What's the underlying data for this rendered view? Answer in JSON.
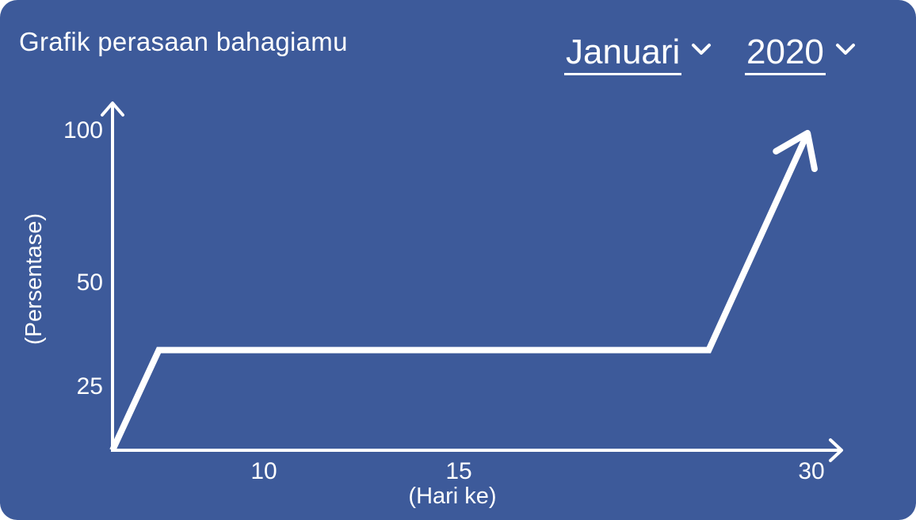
{
  "header": {
    "title": "Grafik perasaan bahagiamu",
    "month": "Januari",
    "year": "2020",
    "dropdown_icon": "chevron-down-icon"
  },
  "colors": {
    "background": "#3d5a9a",
    "foreground": "#ffffff"
  },
  "chart_data": {
    "type": "line",
    "title": "Grafik perasaan bahagiamu",
    "xlabel": "(Hari ke)",
    "ylabel": "(Persentase)",
    "x_ticks": [
      "10",
      "15",
      "30"
    ],
    "y_ticks": [
      "100",
      "50",
      "25"
    ],
    "series": [
      {
        "x": [
          7.4,
          8.9,
          26.7,
          29.9
        ],
        "y": [
          0,
          30,
          30,
          95
        ]
      }
    ],
    "xlim": [
      7.4,
      31
    ],
    "ylim": [
      0,
      104
    ],
    "ends_with_arrow": true,
    "grid": false,
    "legend": "none"
  }
}
